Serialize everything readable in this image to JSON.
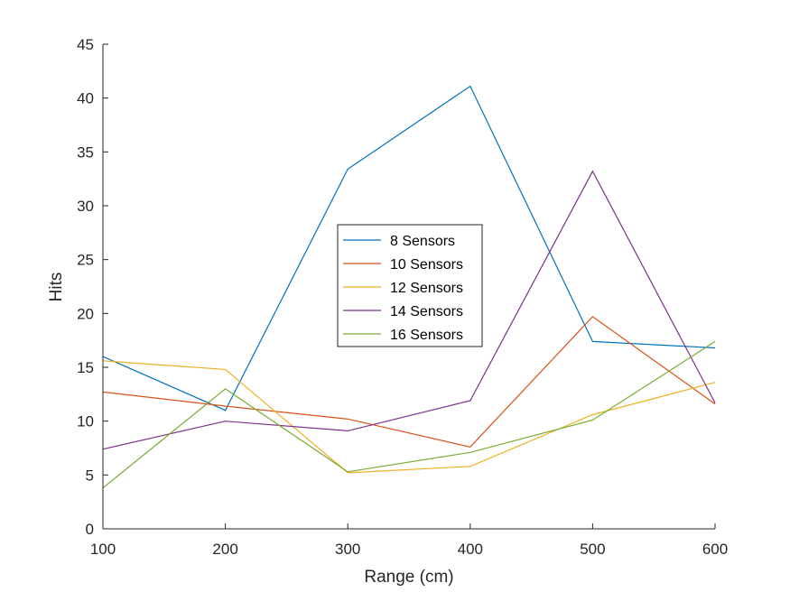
{
  "chart_data": {
    "type": "line",
    "title": "",
    "xlabel": "Range (cm)",
    "ylabel": "Hits",
    "x": [
      100,
      200,
      300,
      400,
      500,
      600
    ],
    "xlim": [
      100,
      600
    ],
    "ylim": [
      0,
      45
    ],
    "xticks": [
      "100",
      "200",
      "300",
      "400",
      "500",
      "600"
    ],
    "yticks": [
      "0",
      "5",
      "10",
      "15",
      "20",
      "25",
      "30",
      "35",
      "40",
      "45"
    ],
    "grid": false,
    "legend_position": "center",
    "series": [
      {
        "name": "8 Sensors",
        "color": "#0072BD",
        "values": [
          16.0,
          11.0,
          33.4,
          41.1,
          17.4,
          16.8
        ]
      },
      {
        "name": "10 Sensors",
        "color": "#D95319",
        "values": [
          12.7,
          11.4,
          10.2,
          7.6,
          19.7,
          11.6
        ]
      },
      {
        "name": "12 Sensors",
        "color": "#EDB120",
        "values": [
          15.6,
          14.8,
          5.2,
          5.8,
          10.6,
          13.6
        ]
      },
      {
        "name": "14 Sensors",
        "color": "#7E2F8E",
        "values": [
          7.4,
          10.0,
          9.1,
          11.9,
          33.2,
          11.7
        ]
      },
      {
        "name": "16 Sensors",
        "color": "#77AC30",
        "values": [
          3.8,
          13.0,
          5.3,
          7.1,
          10.1,
          17.4
        ]
      }
    ]
  }
}
